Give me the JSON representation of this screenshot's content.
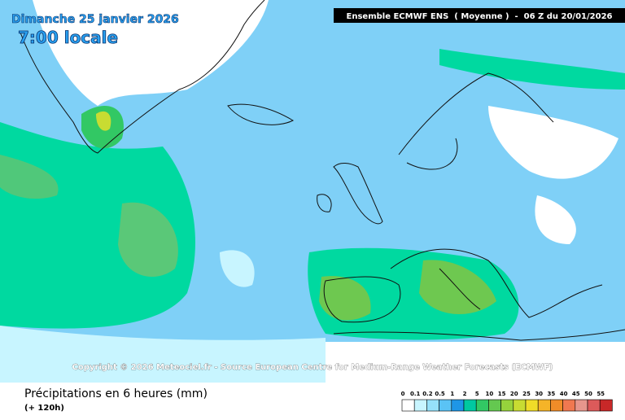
{
  "header": {
    "date": "Dimanche 25 janvier 2026",
    "time": "7:00 locale",
    "model": "Ensemble ECMWF ENS  ( Moyenne )  -  06 Z du 20/01/2026"
  },
  "map": {
    "copyright": "Copyright © 2026 Meteociel.fr - Source European Centre for Medium-Range Weather Forecasts (ECMWF)"
  },
  "footer": {
    "title": "Précipitations en 6 heures (mm)",
    "lead": "(+ 120h)"
  },
  "legend": {
    "labels": [
      0,
      0.1,
      0.2,
      0.5,
      1,
      2,
      5,
      10,
      15,
      20,
      25,
      30,
      35,
      40,
      45,
      50,
      55
    ],
    "colors": [
      "#ffffff",
      "#c8f5ff",
      "#96e1fa",
      "#5ac3f5",
      "#1e96e6",
      "#00c8a0",
      "#32c864",
      "#64c850",
      "#96d23c",
      "#c8dc32",
      "#f0dc28",
      "#f5b428",
      "#f08c28",
      "#f07850",
      "#e6968c",
      "#dc5a5a",
      "#c82828"
    ]
  }
}
